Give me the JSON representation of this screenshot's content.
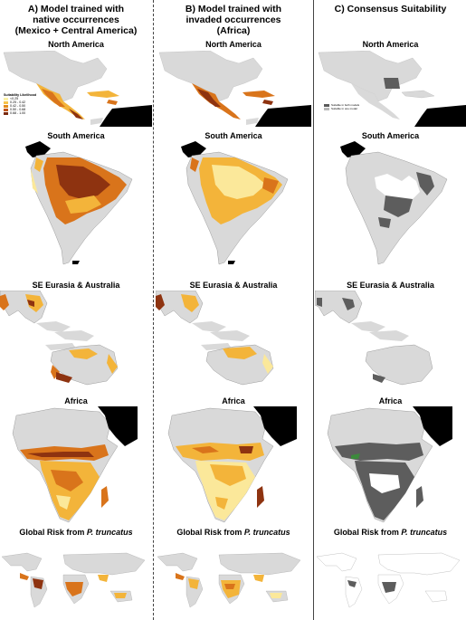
{
  "columns": [
    {
      "title_lines": [
        "A)  Model trained with",
        "native occurrences",
        "(Mexico + Central America)"
      ],
      "panels": [
        "North America",
        "South America",
        "SE Eurasia & Australia",
        "Africa"
      ],
      "global_label_prefix": "Global Risk from ",
      "global_label_species": "P. truncatus",
      "legend": {
        "title": "Suitability Likelihood",
        "entries": [
          "<0.25",
          "0.25 - 0.42",
          "0.42 - 0.50",
          "0.50 - 0.68",
          "0.68 - 1.00"
        ],
        "colors": [
          "#fbf1a6",
          "#f6c34a",
          "#e38b1c",
          "#c0541a",
          "#7a2a10"
        ]
      }
    },
    {
      "title_lines": [
        "B)  Model trained with",
        "invaded occurrences",
        "(Africa)"
      ],
      "panels": [
        "North America",
        "South America",
        "SE Eurasia & Australia",
        "Africa"
      ],
      "global_label_prefix": "Global Risk from ",
      "global_label_species": "P. truncatus"
    },
    {
      "title_lines": [
        "C)  Consensus Suitability"
      ],
      "panels": [
        "North America",
        "South America",
        "SE Eurasia & Australia",
        "Africa"
      ],
      "global_label_prefix": "Global Risk from ",
      "global_label_species": "P. truncatus",
      "legend": {
        "entries": [
          "Suitable in both models",
          "Suitable in one model"
        ],
        "colors": [
          "#5a5a5a",
          "#b8b8b8"
        ]
      }
    }
  ],
  "colors": {
    "land": "#d9d9d9",
    "masked": "#000000",
    "border": "#7a7a7a",
    "suit_low": "#fbe89a",
    "suit_mid": "#f3b43a",
    "suit_high": "#d9741b",
    "suit_top": "#8e3310",
    "consensus": "#5d5d5d"
  }
}
